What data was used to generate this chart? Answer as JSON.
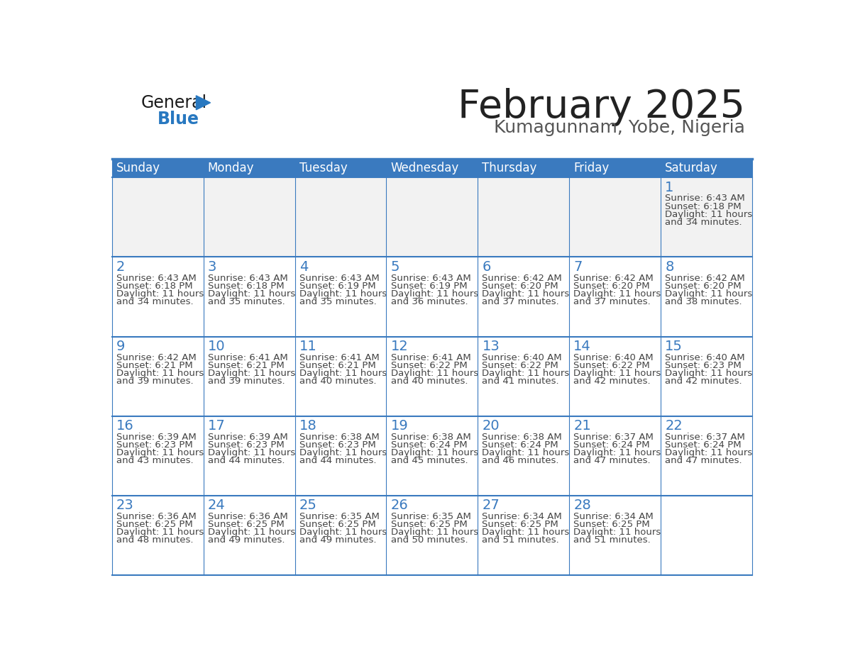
{
  "title": "February 2025",
  "subtitle": "Kumagunnam, Yobe, Nigeria",
  "header_color": "#3a7abf",
  "header_text_color": "#ffffff",
  "cell_bg_color": "#ffffff",
  "cell_row1_bg": "#f0f0f0",
  "cell_border_color": "#3a7abf",
  "day_number_color": "#3a7abf",
  "cell_text_color": "#444444",
  "days_of_week": [
    "Sunday",
    "Monday",
    "Tuesday",
    "Wednesday",
    "Thursday",
    "Friday",
    "Saturday"
  ],
  "title_color": "#222222",
  "subtitle_color": "#555555",
  "logo_general_color": "#1a1a1a",
  "logo_blue_color": "#2878c0",
  "calendar_data": [
    [
      null,
      null,
      null,
      null,
      null,
      null,
      {
        "day": 1,
        "sunrise": "6:43 AM",
        "sunset": "6:18 PM",
        "daylight_line1": "Daylight: 11 hours",
        "daylight_line2": "and 34 minutes."
      }
    ],
    [
      {
        "day": 2,
        "sunrise": "6:43 AM",
        "sunset": "6:18 PM",
        "daylight_line1": "Daylight: 11 hours",
        "daylight_line2": "and 34 minutes."
      },
      {
        "day": 3,
        "sunrise": "6:43 AM",
        "sunset": "6:18 PM",
        "daylight_line1": "Daylight: 11 hours",
        "daylight_line2": "and 35 minutes."
      },
      {
        "day": 4,
        "sunrise": "6:43 AM",
        "sunset": "6:19 PM",
        "daylight_line1": "Daylight: 11 hours",
        "daylight_line2": "and 35 minutes."
      },
      {
        "day": 5,
        "sunrise": "6:43 AM",
        "sunset": "6:19 PM",
        "daylight_line1": "Daylight: 11 hours",
        "daylight_line2": "and 36 minutes."
      },
      {
        "day": 6,
        "sunrise": "6:42 AM",
        "sunset": "6:20 PM",
        "daylight_line1": "Daylight: 11 hours",
        "daylight_line2": "and 37 minutes."
      },
      {
        "day": 7,
        "sunrise": "6:42 AM",
        "sunset": "6:20 PM",
        "daylight_line1": "Daylight: 11 hours",
        "daylight_line2": "and 37 minutes."
      },
      {
        "day": 8,
        "sunrise": "6:42 AM",
        "sunset": "6:20 PM",
        "daylight_line1": "Daylight: 11 hours",
        "daylight_line2": "and 38 minutes."
      }
    ],
    [
      {
        "day": 9,
        "sunrise": "6:42 AM",
        "sunset": "6:21 PM",
        "daylight_line1": "Daylight: 11 hours",
        "daylight_line2": "and 39 minutes."
      },
      {
        "day": 10,
        "sunrise": "6:41 AM",
        "sunset": "6:21 PM",
        "daylight_line1": "Daylight: 11 hours",
        "daylight_line2": "and 39 minutes."
      },
      {
        "day": 11,
        "sunrise": "6:41 AM",
        "sunset": "6:21 PM",
        "daylight_line1": "Daylight: 11 hours",
        "daylight_line2": "and 40 minutes."
      },
      {
        "day": 12,
        "sunrise": "6:41 AM",
        "sunset": "6:22 PM",
        "daylight_line1": "Daylight: 11 hours",
        "daylight_line2": "and 40 minutes."
      },
      {
        "day": 13,
        "sunrise": "6:40 AM",
        "sunset": "6:22 PM",
        "daylight_line1": "Daylight: 11 hours",
        "daylight_line2": "and 41 minutes."
      },
      {
        "day": 14,
        "sunrise": "6:40 AM",
        "sunset": "6:22 PM",
        "daylight_line1": "Daylight: 11 hours",
        "daylight_line2": "and 42 minutes."
      },
      {
        "day": 15,
        "sunrise": "6:40 AM",
        "sunset": "6:23 PM",
        "daylight_line1": "Daylight: 11 hours",
        "daylight_line2": "and 42 minutes."
      }
    ],
    [
      {
        "day": 16,
        "sunrise": "6:39 AM",
        "sunset": "6:23 PM",
        "daylight_line1": "Daylight: 11 hours",
        "daylight_line2": "and 43 minutes."
      },
      {
        "day": 17,
        "sunrise": "6:39 AM",
        "sunset": "6:23 PM",
        "daylight_line1": "Daylight: 11 hours",
        "daylight_line2": "and 44 minutes."
      },
      {
        "day": 18,
        "sunrise": "6:38 AM",
        "sunset": "6:23 PM",
        "daylight_line1": "Daylight: 11 hours",
        "daylight_line2": "and 44 minutes."
      },
      {
        "day": 19,
        "sunrise": "6:38 AM",
        "sunset": "6:24 PM",
        "daylight_line1": "Daylight: 11 hours",
        "daylight_line2": "and 45 minutes."
      },
      {
        "day": 20,
        "sunrise": "6:38 AM",
        "sunset": "6:24 PM",
        "daylight_line1": "Daylight: 11 hours",
        "daylight_line2": "and 46 minutes."
      },
      {
        "day": 21,
        "sunrise": "6:37 AM",
        "sunset": "6:24 PM",
        "daylight_line1": "Daylight: 11 hours",
        "daylight_line2": "and 47 minutes."
      },
      {
        "day": 22,
        "sunrise": "6:37 AM",
        "sunset": "6:24 PM",
        "daylight_line1": "Daylight: 11 hours",
        "daylight_line2": "and 47 minutes."
      }
    ],
    [
      {
        "day": 23,
        "sunrise": "6:36 AM",
        "sunset": "6:25 PM",
        "daylight_line1": "Daylight: 11 hours",
        "daylight_line2": "and 48 minutes."
      },
      {
        "day": 24,
        "sunrise": "6:36 AM",
        "sunset": "6:25 PM",
        "daylight_line1": "Daylight: 11 hours",
        "daylight_line2": "and 49 minutes."
      },
      {
        "day": 25,
        "sunrise": "6:35 AM",
        "sunset": "6:25 PM",
        "daylight_line1": "Daylight: 11 hours",
        "daylight_line2": "and 49 minutes."
      },
      {
        "day": 26,
        "sunrise": "6:35 AM",
        "sunset": "6:25 PM",
        "daylight_line1": "Daylight: 11 hours",
        "daylight_line2": "and 50 minutes."
      },
      {
        "day": 27,
        "sunrise": "6:34 AM",
        "sunset": "6:25 PM",
        "daylight_line1": "Daylight: 11 hours",
        "daylight_line2": "and 51 minutes."
      },
      {
        "day": 28,
        "sunrise": "6:34 AM",
        "sunset": "6:25 PM",
        "daylight_line1": "Daylight: 11 hours",
        "daylight_line2": "and 51 minutes."
      },
      null
    ]
  ]
}
